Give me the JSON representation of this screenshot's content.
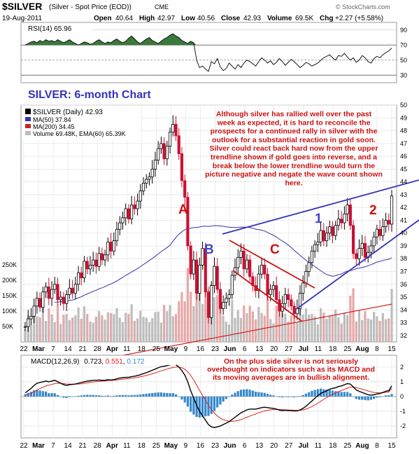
{
  "header": {
    "symbol": "$SILVER",
    "description": "(Silver - Spot Price (EOD))",
    "exchange": "CME",
    "watermark": "© StockCharts.com",
    "date": "19-Aug-2011",
    "quote": {
      "open_label": "Open",
      "open": "40.64",
      "high_label": "High",
      "high": "42.97",
      "low_label": "Low",
      "low": "40.56",
      "close_label": "Close",
      "close": "42.93",
      "volume_label": "Volume",
      "volume": "69.5K",
      "chg_label": "Chg",
      "chg": "+2.27 (+5.58%)"
    }
  },
  "rsi_panel": {
    "legend": "RSI(14) 65.96",
    "value": "65.96",
    "ticks": [
      30,
      50,
      70,
      90
    ],
    "ylim": [
      20,
      100
    ],
    "overbought": 70,
    "oversold": 30,
    "colors": {
      "fill": "#3a7a3a",
      "line": "#000000"
    }
  },
  "price_panel": {
    "title": "SILVER: 6-month Chart",
    "legend": [
      {
        "label": "$SILVER (Daily) 42.93",
        "color": "#000000"
      },
      {
        "label": "MA(50) 37.84",
        "color": "#3333aa"
      },
      {
        "label": "MA(200) 34.45",
        "color": "#cc2222"
      },
      {
        "label": "Volume 69.48K, EMA(60) 65.39K",
        "color": "#888888"
      }
    ],
    "annotation": "Although silver has rallied well over the past week as expected, it is hard to reconcile the prospects for a continued rally in silver with the outlook for a substantial reaction in gold soon. Silver could react back hard now from the upper trendline shown if gold goes into reverse, and a break below the lower trendline would turn the picture negative and negate the wave count shown here.",
    "wave_labels": [
      {
        "text": "A",
        "color": "#cc1111"
      },
      {
        "text": "B",
        "color": "#4444cc"
      },
      {
        "text": "C",
        "color": "#cc1111"
      },
      {
        "text": "1",
        "color": "#4444cc"
      },
      {
        "text": "2",
        "color": "#cc1111"
      }
    ],
    "y_ticks": [
      32,
      33,
      34,
      35,
      36,
      37,
      38,
      39,
      40,
      41,
      42,
      43,
      44,
      45,
      46,
      47,
      48,
      49,
      50
    ],
    "volume_ticks": [
      "50K",
      "100K",
      "150K",
      "200K",
      "250K"
    ]
  },
  "macd_panel": {
    "legend_prefix": "MACD(12,26,9)",
    "macd": "0.723",
    "signal": "0.551",
    "histogram": "0.172",
    "ticks": [
      -2,
      -1,
      0,
      1,
      2
    ],
    "ylim": [
      -2.8,
      2.8
    ],
    "annotation": "On the plus side silver is not seriously overbought on indicators such as its MACD and its moving averages are in bullish alignment.",
    "colors": {
      "macd": "#000000",
      "signal": "#dd2222",
      "hist": "#3388cc"
    }
  },
  "x_axis": {
    "labels": [
      {
        "text": "22",
        "bold": false
      },
      {
        "text": "Mar",
        "bold": true
      },
      {
        "text": "7",
        "bold": false
      },
      {
        "text": "14",
        "bold": false
      },
      {
        "text": "21",
        "bold": false
      },
      {
        "text": "28",
        "bold": false
      },
      {
        "text": "Apr",
        "bold": true
      },
      {
        "text": "11",
        "bold": false
      },
      {
        "text": "18",
        "bold": false
      },
      {
        "text": "25",
        "bold": false
      },
      {
        "text": "May",
        "bold": true
      },
      {
        "text": "9",
        "bold": false
      },
      {
        "text": "16",
        "bold": false
      },
      {
        "text": "23",
        "bold": false
      },
      {
        "text": "Jun",
        "bold": true
      },
      {
        "text": "6",
        "bold": false
      },
      {
        "text": "13",
        "bold": false
      },
      {
        "text": "20",
        "bold": false
      },
      {
        "text": "27",
        "bold": false
      },
      {
        "text": "Jul",
        "bold": true
      },
      {
        "text": "11",
        "bold": false
      },
      {
        "text": "18",
        "bold": false
      },
      {
        "text": "25",
        "bold": false
      },
      {
        "text": "Aug",
        "bold": true
      },
      {
        "text": "8",
        "bold": false
      },
      {
        "text": "15",
        "bold": false
      }
    ]
  },
  "chart_data": [
    {
      "type": "line",
      "name": "RSI(14)",
      "ylim": [
        20,
        100
      ],
      "values": [
        70,
        72,
        74,
        75,
        73,
        76,
        74,
        77,
        75,
        76,
        74,
        77,
        75,
        73,
        75,
        77,
        74,
        72,
        70,
        72,
        74,
        73,
        71,
        72,
        75,
        77,
        74,
        72,
        74,
        73,
        76,
        78,
        75,
        73,
        75,
        79,
        82,
        78,
        74,
        72,
        75,
        78,
        80,
        76,
        74,
        72,
        75,
        78,
        80,
        83,
        85,
        82,
        80,
        76,
        74,
        72,
        75,
        73,
        50,
        40,
        42,
        38,
        35,
        48,
        45,
        52,
        41,
        36,
        39,
        46,
        42,
        38,
        44,
        40,
        46,
        50,
        48,
        45,
        42,
        48,
        53,
        50,
        46,
        49,
        44,
        47,
        52,
        48,
        43,
        47,
        51,
        48,
        44,
        40,
        43,
        47,
        45,
        42,
        44,
        46,
        50,
        53,
        55,
        57,
        53,
        50,
        56,
        55,
        59,
        54,
        50,
        53,
        47,
        50,
        56,
        53,
        48,
        46,
        52,
        55,
        53,
        57,
        60,
        62,
        66
      ]
    },
    {
      "type": "line",
      "name": "$SILVER (Daily)",
      "x_start": "22-Feb-2011",
      "x_end": "19-Aug-2011",
      "ylim": [
        31.5,
        50
      ],
      "close": [
        32.7,
        33.3,
        33.5,
        34.3,
        34.9,
        34.2,
        35.4,
        35.8,
        34.9,
        35.6,
        36.0,
        34.8,
        35.0,
        34.5,
        35.2,
        35.7,
        35.3,
        36.0,
        36.9,
        36.5,
        37.8,
        37.2,
        37.5,
        37.9,
        37.4,
        38.4,
        37.9,
        38.3,
        39.3,
        38.6,
        39.4,
        40.3,
        40.8,
        41.2,
        41.9,
        41.1,
        42.2,
        41.9,
        42.5,
        43.3,
        43.9,
        44.2,
        44.4,
        45.0,
        45.7,
        46.6,
        47.0,
        45.8,
        46.8,
        47.9,
        48.5,
        47.6,
        46.2,
        44.1,
        42.8,
        39.0,
        36.8,
        37.9,
        35.3,
        37.5,
        38.8,
        35.4,
        33.4,
        35.9,
        37.4,
        35.6,
        34.1,
        34.6,
        34.9,
        35.2,
        36.7,
        37.3,
        38.1,
        38.6,
        37.2,
        37.9,
        36.6,
        35.9,
        35.5,
        36.8,
        37.5,
        36.8,
        35.2,
        35.6,
        35.9,
        34.8,
        33.9,
        34.5,
        35.2,
        34.8,
        34.3,
        33.7,
        34.1,
        35.3,
        36.1,
        37.0,
        37.7,
        38.6,
        39.1,
        39.3,
        40.2,
        39.4,
        40.0,
        40.5,
        39.8,
        40.6,
        41.1,
        40.8,
        41.5,
        42.2,
        40.6,
        38.4,
        38.0,
        38.8,
        39.2,
        38.1,
        38.5,
        39.0,
        39.7,
        40.3,
        39.8,
        40.5,
        41.0,
        40.7,
        42.9
      ]
    },
    {
      "type": "line",
      "name": "MACD(12,26,9)",
      "ylim": [
        -2.8,
        2.8
      ],
      "macd": [
        0.25,
        0.4,
        0.55,
        0.75,
        0.9,
        0.95,
        1.0,
        1.05,
        1.0,
        1.05,
        1.1,
        1.0,
        0.9,
        0.8,
        0.75,
        0.8,
        0.82,
        0.85,
        0.9,
        0.95,
        1.0,
        1.05,
        1.07,
        1.1,
        1.1,
        1.12,
        1.1,
        1.1,
        1.15,
        1.12,
        1.15,
        1.2,
        1.25,
        1.28,
        1.3,
        1.3,
        1.35,
        1.38,
        1.42,
        1.48,
        1.55,
        1.62,
        1.7,
        1.78,
        1.86,
        1.95,
        2.02,
        2.05,
        2.1,
        2.15,
        2.2,
        2.15,
        2.0,
        1.75,
        1.45,
        1.0,
        0.4,
        -0.1,
        -0.6,
        -1.0,
        -1.3,
        -1.6,
        -1.9,
        -2.05,
        -2.1,
        -2.05,
        -2.0,
        -1.9,
        -1.8,
        -1.7,
        -1.55,
        -1.4,
        -1.25,
        -1.1,
        -1.0,
        -0.9,
        -0.85,
        -0.85,
        -0.85,
        -0.8,
        -0.75,
        -0.72,
        -0.75,
        -0.78,
        -0.8,
        -0.85,
        -0.92,
        -0.95,
        -0.93,
        -0.95,
        -0.95,
        -0.98,
        -0.97,
        -0.9,
        -0.8,
        -0.65,
        -0.48,
        -0.3,
        -0.12,
        0.05,
        0.22,
        0.3,
        0.4,
        0.5,
        0.55,
        0.6,
        0.68,
        0.72,
        0.8,
        0.88,
        0.85,
        0.65,
        0.45,
        0.35,
        0.28,
        0.2,
        0.12,
        0.1,
        0.12,
        0.18,
        0.2,
        0.28,
        0.36,
        0.4,
        0.72
      ],
      "signal": [
        0.1,
        0.15,
        0.23,
        0.33,
        0.44,
        0.54,
        0.63,
        0.71,
        0.77,
        0.82,
        0.88,
        0.9,
        0.9,
        0.88,
        0.85,
        0.84,
        0.84,
        0.84,
        0.85,
        0.87,
        0.9,
        0.93,
        0.96,
        0.99,
        1.01,
        1.03,
        1.05,
        1.06,
        1.08,
        1.09,
        1.1,
        1.12,
        1.15,
        1.17,
        1.2,
        1.22,
        1.25,
        1.27,
        1.3,
        1.34,
        1.38,
        1.43,
        1.48,
        1.54,
        1.6,
        1.67,
        1.74,
        1.8,
        1.86,
        1.92,
        1.97,
        2.0,
        2.0,
        1.95,
        1.85,
        1.68,
        1.43,
        1.12,
        0.78,
        0.42,
        0.08,
        -0.26,
        -0.59,
        -0.88,
        -1.12,
        -1.31,
        -1.46,
        -1.56,
        -1.63,
        -1.67,
        -1.68,
        -1.66,
        -1.62,
        -1.56,
        -1.48,
        -1.4,
        -1.32,
        -1.25,
        -1.18,
        -1.1,
        -1.03,
        -0.97,
        -0.93,
        -0.9,
        -0.88,
        -0.87,
        -0.88,
        -0.89,
        -0.9,
        -0.91,
        -0.92,
        -0.93,
        -0.94,
        -0.93,
        -0.9,
        -0.85,
        -0.77,
        -0.68,
        -0.57,
        -0.45,
        -0.32,
        -0.19,
        -0.07,
        0.05,
        0.15,
        0.24,
        0.33,
        0.41,
        0.49,
        0.57,
        0.63,
        0.64,
        0.61,
        0.56,
        0.5,
        0.44,
        0.38,
        0.32,
        0.28,
        0.26,
        0.25,
        0.26,
        0.28,
        0.31,
        0.55
      ]
    }
  ]
}
